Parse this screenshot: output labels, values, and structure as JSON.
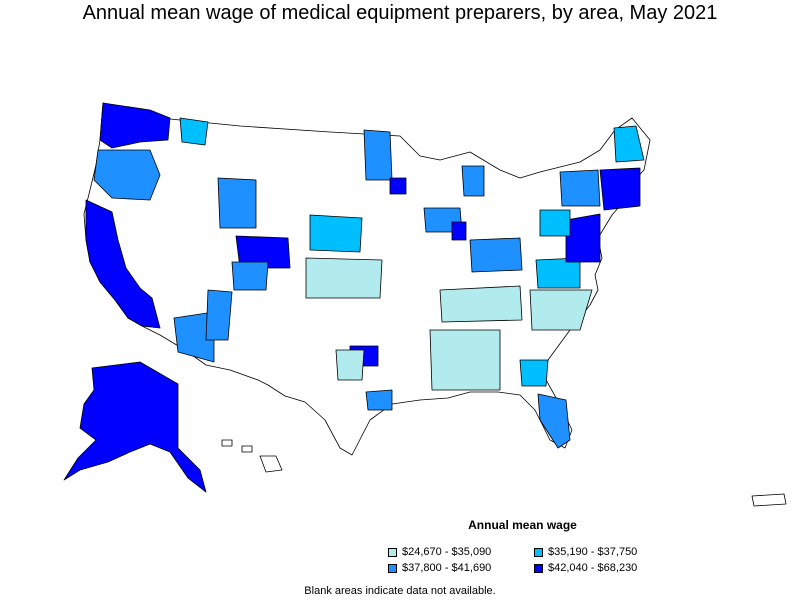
{
  "title": "Annual mean wage of medical equipment preparers, by area, May 2021",
  "legend": {
    "title": "Annual mean wage",
    "items": [
      {
        "label": "$24,670 - $35,090",
        "color": "#b2ebee"
      },
      {
        "label": "$35,190 - $37,750",
        "color": "#00bfff"
      },
      {
        "label": "$37,800 - $41,690",
        "color": "#1e90ff"
      },
      {
        "label": "$42,040 - $68,230",
        "color": "#0000ff"
      }
    ]
  },
  "note": "Blank areas indicate data not available."
}
